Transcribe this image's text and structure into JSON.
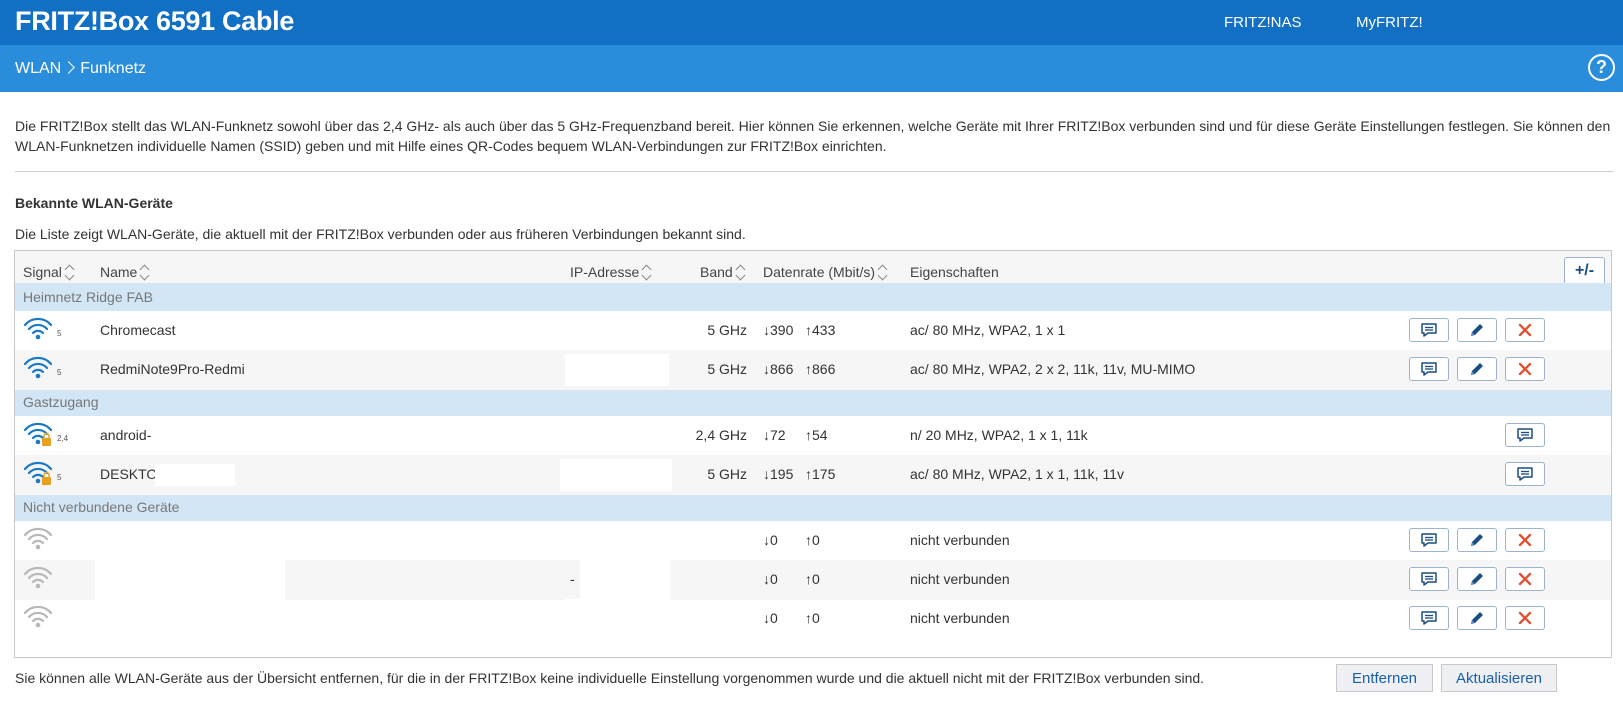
{
  "header": {
    "brand": "FRITZ!Box 6591 Cable",
    "links": [
      "FRITZ!NAS",
      "MyFRITZ!"
    ]
  },
  "breadcrumb": {
    "section": "WLAN",
    "page": "Funknetz",
    "help": "?"
  },
  "intro": "Die FRITZ!Box stellt das WLAN-Funknetz sowohl über das 2,4 GHz- als auch über das 5 GHz-Frequenzband bereit. Hier können Sie erkennen, welche Geräte mit Ihrer FRITZ!Box verbunden sind und für diese Geräte Einstellungen festlegen. Sie können den WLAN-Funknetzen individuelle Namen (SSID) geben und mit Hilfe eines QR-Codes bequem WLAN-Verbindungen zur FRITZ!Box einrichten.",
  "section_title": "Bekannte WLAN-Geräte",
  "section_desc": "Die Liste zeigt WLAN-Geräte, die aktuell mit der FRITZ!Box verbunden oder aus früheren Verbindungen bekannt sind.",
  "table": {
    "columns": {
      "signal": "Signal",
      "name": "Name",
      "ip": "IP-Adresse",
      "band": "Band",
      "rate": "Datenrate (Mbit/s)",
      "props": "Eigenschaften",
      "toggle": "+/-"
    },
    "groups": {
      "home": "Heimnetz Ridge FAB",
      "guest": "Gastzugang",
      "offline": "Nicht verbundene Geräte"
    },
    "rows": [
      {
        "badge": "5",
        "name": "Chromecast",
        "ip": "",
        "band": "5 GHz",
        "down": "↓390",
        "up": "↑433",
        "props": "ac/ 80 MHz, WPA2, 1 x 1"
      },
      {
        "badge": "5",
        "name": "RedmiNote9Pro-Redmi",
        "ip": "",
        "band": "5 GHz",
        "down": "↓866",
        "up": "↑866",
        "props": "ac/ 80 MHz, WPA2, 2 x 2, 11k, 11v, MU-MIMO"
      },
      {
        "badge": "2,4",
        "name": "android-",
        "ip": "",
        "band": "2,4 GHz",
        "down": "↓72",
        "up": "↑54",
        "props": "n/ 20 MHz, WPA2, 1 x 1, 11k"
      },
      {
        "badge": "5",
        "name": "DESKTOP-",
        "ip": "",
        "band": "5 GHz",
        "down": "↓195",
        "up": "↑175",
        "props": "ac/ 80 MHz, WPA2, 1 x 1, 11k, 11v"
      },
      {
        "badge": "",
        "name": "",
        "ip": "",
        "band": "",
        "down": "↓0",
        "up": "↑0",
        "props": "nicht verbunden"
      },
      {
        "badge": "",
        "name": "",
        "ip": "-",
        "band": "",
        "down": "↓0",
        "up": "↑0",
        "props": "nicht verbunden"
      },
      {
        "badge": "",
        "name": "",
        "ip": "",
        "band": "",
        "down": "↓0",
        "up": "↑0",
        "props": "nicht verbunden"
      }
    ]
  },
  "footer": {
    "note": "Sie können alle WLAN-Geräte aus der Übersicht entfernen, für die in der FRITZ!Box keine individuelle Einstellung vorgenommen wurde und die aktuell nicht mit der FRITZ!Box verbunden sind.",
    "remove": "Entfernen",
    "refresh": "Aktualisieren"
  },
  "colors": {
    "topbar": "#1270c4",
    "subbar": "#2a8ddb",
    "group": "#d3e6f6",
    "wifi_active": "#1a7ac6",
    "wifi_inactive": "#b8b8b8",
    "delete": "#e05030",
    "lock": "#e8a020"
  }
}
